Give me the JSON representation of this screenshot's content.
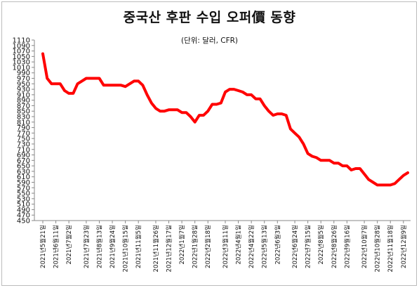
{
  "chart_data": {
    "type": "line",
    "title": "중국산 후판 수입 오퍼價 동향",
    "subtitle": "(단위: 달러, CFR)",
    "xlabel": "",
    "ylabel": "",
    "ylim": [
      450,
      1110
    ],
    "ystep": 20,
    "grid": false,
    "series_color": "#ff0000",
    "x_tick_labels": [
      "2021년5월21일",
      "2021년6월11일",
      "2021년7월2일",
      "2021년7월23일",
      "2021년8월13일",
      "2021년9월24일",
      "2021년10월15일",
      "2021년11월5일",
      "2021년11월26일",
      "2021년12월17일",
      "2022년1월7일",
      "2022년1월28일",
      "2022년2월18일",
      "2022년3월11일",
      "2022년4월1일",
      "2022년4월22일",
      "2022년5월13일",
      "2022년6월3일",
      "2022년6월24일",
      "2022년7월15일",
      "2022년8월5일",
      "2022년8월26일",
      "2022년9월16일",
      "2022년10월7일",
      "2022년10월28일",
      "2022년11월18일",
      "2022년12월9일"
    ],
    "values": [
      1060,
      970,
      950,
      950,
      950,
      925,
      915,
      915,
      950,
      960,
      970,
      970,
      970,
      970,
      945,
      945,
      945,
      945,
      945,
      940,
      950,
      960,
      960,
      945,
      910,
      880,
      860,
      850,
      850,
      855,
      855,
      855,
      845,
      845,
      830,
      810,
      835,
      835,
      850,
      875,
      875,
      880,
      920,
      930,
      930,
      925,
      920,
      910,
      910,
      895,
      895,
      870,
      850,
      835,
      840,
      840,
      835,
      785,
      770,
      755,
      730,
      695,
      685,
      680,
      670,
      670,
      670,
      660,
      660,
      650,
      650,
      635,
      640,
      640,
      620,
      600,
      590,
      580,
      580,
      580,
      580,
      585,
      600,
      615,
      625
    ]
  }
}
